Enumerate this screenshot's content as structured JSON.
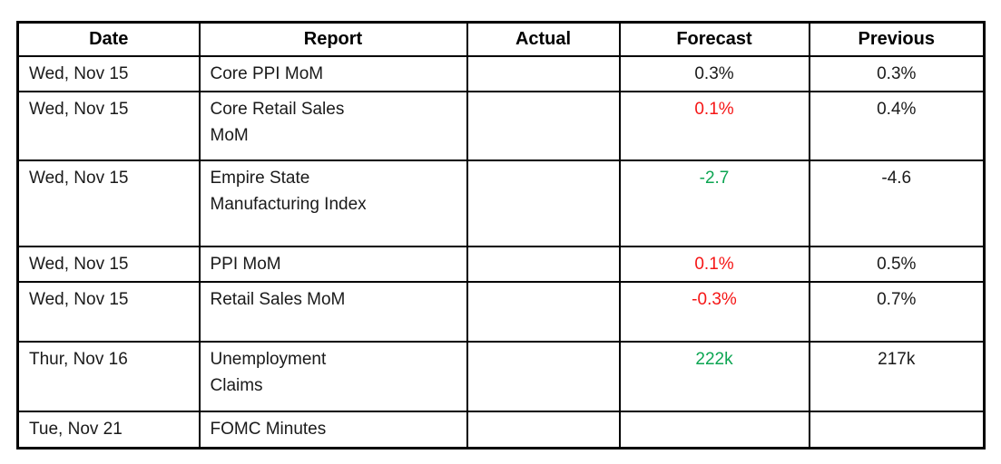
{
  "table": {
    "title": "economic-calendar",
    "colors": {
      "black": "#1a1a1a",
      "red": "#f51616",
      "green": "#0ca552",
      "border": "#000000"
    },
    "columns": [
      {
        "key": "date",
        "label": "Date"
      },
      {
        "key": "report",
        "label": "Report"
      },
      {
        "key": "actual",
        "label": "Actual"
      },
      {
        "key": "forecast",
        "label": "Forecast"
      },
      {
        "key": "previous",
        "label": "Previous"
      }
    ],
    "rows": [
      {
        "date": "Wed, Nov 15",
        "report": "Core PPI MoM",
        "actual": "",
        "forecast": "0.3%",
        "forecast_color": "black",
        "previous": "0.3%"
      },
      {
        "date": "Wed, Nov 15",
        "report": "Core Retail Sales\nMoM",
        "actual": "",
        "forecast": "0.1%",
        "forecast_color": "red",
        "previous": "0.4%"
      },
      {
        "date": "Wed, Nov 15",
        "report": "Empire State\nManufacturing Index",
        "actual": "",
        "forecast": "-2.7",
        "forecast_color": "green",
        "previous": "-4.6"
      },
      {
        "date": "Wed, Nov 15",
        "report": "PPI MoM",
        "actual": "",
        "forecast": "0.1%",
        "forecast_color": "red",
        "previous": "0.5%"
      },
      {
        "date": "Wed, Nov 15",
        "report": "Retail Sales MoM",
        "actual": "",
        "forecast": "-0.3%",
        "forecast_color": "red",
        "previous": "0.7%"
      },
      {
        "date": "Thur, Nov 16",
        "report": "Unemployment\nClaims",
        "actual": "",
        "forecast": "222k",
        "forecast_color": "green",
        "previous": "217k"
      },
      {
        "date": "Tue, Nov 21",
        "report": "FOMC Minutes",
        "actual": "",
        "forecast": "",
        "forecast_color": "black",
        "previous": ""
      }
    ]
  }
}
